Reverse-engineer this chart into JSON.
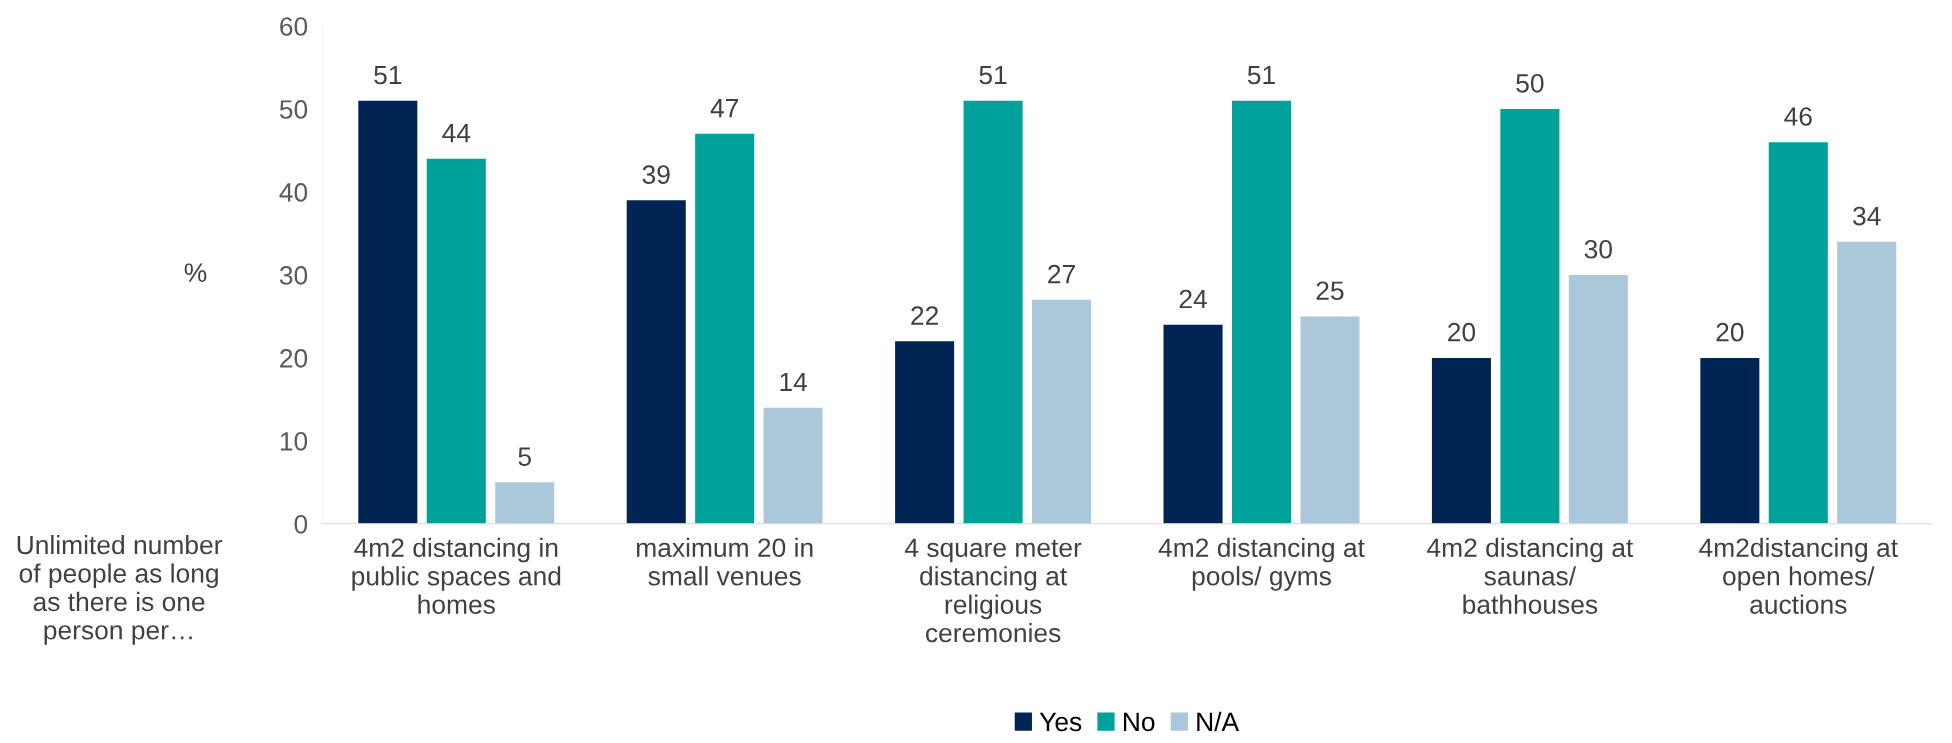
{
  "chart_data": {
    "type": "bar",
    "xlabel": "Unlimited number of people as long as there is one person per…",
    "ylabel": "%",
    "categories": [
      "4m2 distancing in public spaces and homes",
      "maximum 20 in small venues",
      "4 square meter distancing at religious ceremonies",
      "4m2 distancing at pools/ gyms",
      "4m2 distancing at saunas/ bathhouses",
      "4m2distancing at open homes/ auctions"
    ],
    "series": [
      {
        "name": "Yes",
        "color": "#002554",
        "values": [
          51,
          39,
          22,
          24,
          20,
          20
        ]
      },
      {
        "name": "No",
        "color": "#00a19a",
        "values": [
          44,
          47,
          51,
          51,
          50,
          46
        ]
      },
      {
        "name": "N/A",
        "color": "#abc8db",
        "values": [
          5,
          14,
          27,
          25,
          30,
          34
        ]
      }
    ],
    "ylim": [
      0,
      60
    ],
    "yticks": [
      0,
      10,
      20,
      30,
      40,
      50,
      60
    ],
    "data_labels": true,
    "grid": false,
    "legend": "bottom"
  }
}
